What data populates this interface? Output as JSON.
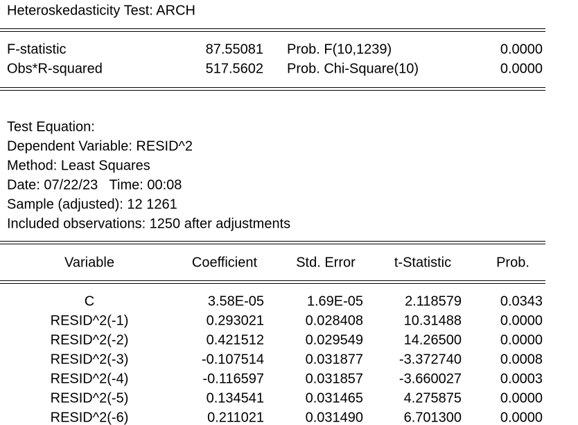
{
  "title": "Heteroskedasticity Test: ARCH",
  "stats": [
    [
      "F-statistic",
      "87.55081",
      "Prob. F(10,1239)",
      "0.0000"
    ],
    [
      "Obs*R-squared",
      "517.5602",
      "Prob. Chi-Square(10)",
      "0.0000"
    ]
  ],
  "info": [
    "Test Equation:",
    "Dependent Variable: RESID^2",
    "Method: Least Squares",
    "Date: 07/22/23   Time: 00:08",
    "Sample (adjusted): 12 1261",
    "Included observations: 1250 after adjustments"
  ],
  "table": {
    "columns": [
      "Variable",
      "Coefficient",
      "Std. Error",
      "t-Statistic",
      "Prob."
    ],
    "rows": [
      [
        "C",
        "3.58E-05",
        "1.69E-05",
        "2.118579",
        "0.0343"
      ],
      [
        "RESID^2(-1)",
        "0.293021",
        "0.028408",
        "10.31488",
        "0.0000"
      ],
      [
        "RESID^2(-2)",
        "0.421512",
        "0.029549",
        "14.26500",
        "0.0000"
      ],
      [
        "RESID^2(-3)",
        "-0.107514",
        "0.031877",
        "-3.372740",
        "0.0008"
      ],
      [
        "RESID^2(-4)",
        "-0.116597",
        "0.031857",
        "-3.660027",
        "0.0003"
      ],
      [
        "RESID^2(-5)",
        "0.134541",
        "0.031465",
        "4.275875",
        "0.0000"
      ],
      [
        "RESID^2(-6)",
        "0.211021",
        "0.031490",
        "6.701300",
        "0.0000"
      ]
    ]
  }
}
